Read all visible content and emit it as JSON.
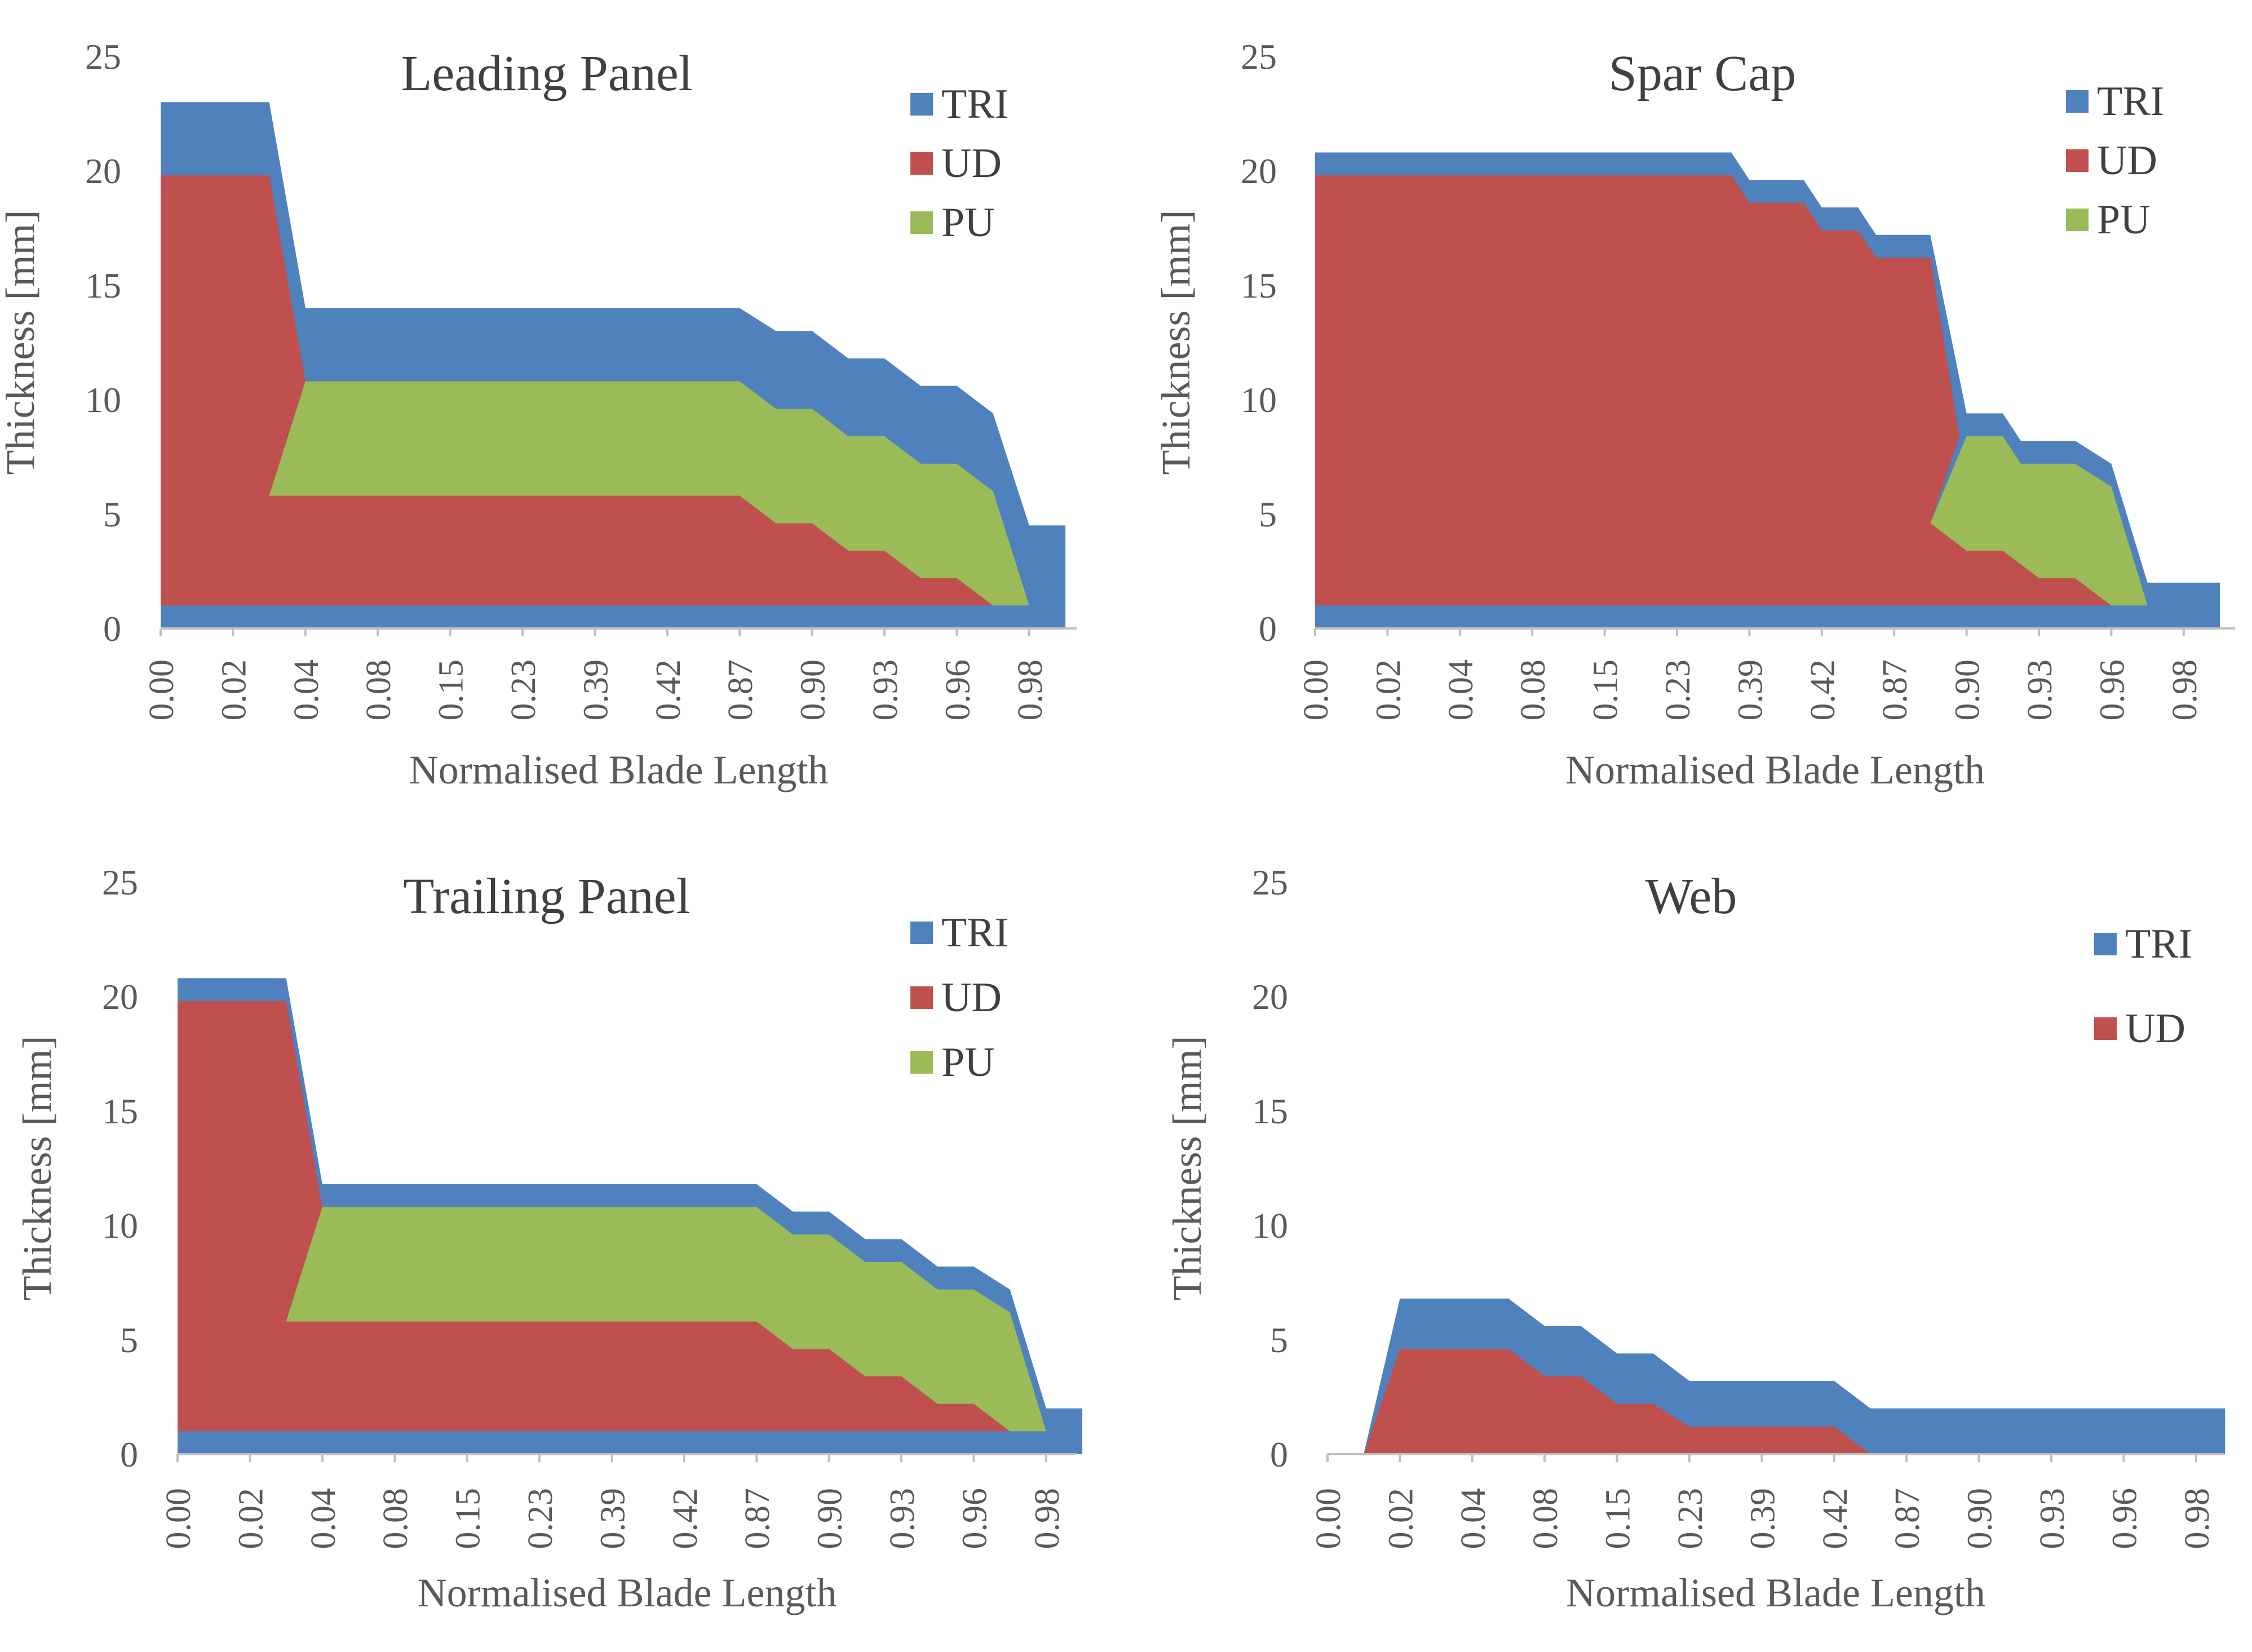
{
  "figure": {
    "charts": [
      "Leading Panel",
      "Spar Cap",
      "Trailing Panel",
      "Web"
    ]
  },
  "colors": {
    "TRI": "#4f81bd",
    "UD": "#c0504d",
    "PU": "#9bbb59",
    "axis": "#bfbfbf",
    "text": "#595959",
    "title": "#404040"
  },
  "chart_data": [
    {
      "type": "area",
      "stacking": "overlapped",
      "title": "Leading Panel",
      "xlabel": "Normalised Blade Length",
      "ylabel": "Thickness [mm]",
      "ylim": [
        0,
        25
      ],
      "yticks": [
        "0",
        "5",
        "10",
        "15",
        "20",
        "25"
      ],
      "categories": [
        "0.00",
        "0.02",
        "0.04",
        "0.08",
        "0.15",
        "0.23",
        "0.39",
        "0.42",
        "0.87",
        "0.90",
        "0.93",
        "0.96",
        "0.98"
      ],
      "legend": [
        "TRI",
        "UD",
        "PU"
      ],
      "series": [
        {
          "name": "TRI",
          "points": [
            [
              0,
              1.0
            ],
            [
              0,
              23.0
            ],
            [
              1.5,
              23.0
            ],
            [
              2.0,
              14.0
            ],
            [
              8.0,
              14.0
            ],
            [
              8.5,
              13.0
            ],
            [
              9.0,
              13.0
            ],
            [
              9.5,
              11.8
            ],
            [
              10.0,
              11.8
            ],
            [
              10.5,
              10.6
            ],
            [
              11.0,
              10.6
            ],
            [
              11.5,
              9.4
            ],
            [
              12.0,
              4.5
            ],
            [
              12.5,
              4.5
            ],
            [
              12.5,
              0
            ]
          ]
        },
        {
          "name": "UD",
          "points": [
            [
              0,
              1.0
            ],
            [
              0,
              19.8
            ],
            [
              1.5,
              19.8
            ],
            [
              2.0,
              10.8
            ],
            [
              1.5,
              5.8
            ],
            [
              8.0,
              5.8
            ],
            [
              8.5,
              4.6
            ],
            [
              9.0,
              4.6
            ],
            [
              9.5,
              3.4
            ],
            [
              10.0,
              3.4
            ],
            [
              10.5,
              2.2
            ],
            [
              11.0,
              2.2
            ],
            [
              11.5,
              1.0
            ]
          ]
        },
        {
          "name": "PU",
          "points": [
            [
              1.5,
              5.8
            ],
            [
              2.0,
              10.8
            ],
            [
              8.0,
              10.8
            ],
            [
              8.5,
              9.6
            ],
            [
              9.0,
              9.6
            ],
            [
              9.5,
              8.4
            ],
            [
              10.0,
              8.4
            ],
            [
              10.5,
              7.2
            ],
            [
              11.0,
              7.2
            ],
            [
              11.5,
              6.0
            ],
            [
              12.0,
              1.0
            ],
            [
              11.5,
              1.0
            ],
            [
              11.0,
              2.2
            ],
            [
              10.5,
              2.2
            ],
            [
              10.0,
              3.4
            ],
            [
              9.5,
              3.4
            ],
            [
              9.0,
              4.6
            ],
            [
              8.5,
              4.6
            ],
            [
              8.0,
              5.8
            ]
          ]
        },
        {
          "name": "TRI",
          "points": [
            [
              0,
              0
            ],
            [
              12.0,
              0
            ],
            [
              12.0,
              1.0
            ],
            [
              0,
              1.0
            ]
          ]
        }
      ]
    },
    {
      "type": "area",
      "stacking": "overlapped",
      "title": "Spar Cap",
      "xlabel": "Normalised Blade Length",
      "ylabel": "Thickness [mm]",
      "ylim": [
        0,
        25
      ],
      "yticks": [
        "0",
        "5",
        "10",
        "15",
        "20",
        "25"
      ],
      "categories": [
        "0.00",
        "0.02",
        "0.04",
        "0.08",
        "0.15",
        "0.23",
        "0.39",
        "0.42",
        "0.87",
        "0.90",
        "0.93",
        "0.96",
        "0.98"
      ],
      "legend": [
        "TRI",
        "UD",
        "PU"
      ],
      "series": [
        {
          "name": "TRI",
          "points": [
            [
              0,
              0
            ],
            [
              0,
              20.8
            ],
            [
              5.75,
              20.8
            ],
            [
              6.0,
              19.6
            ],
            [
              6.75,
              19.6
            ],
            [
              7.0,
              18.4
            ],
            [
              7.5,
              18.4
            ],
            [
              7.75,
              17.2
            ],
            [
              8.5,
              17.2
            ],
            [
              9.0,
              9.4
            ],
            [
              9.5,
              9.4
            ],
            [
              9.75,
              8.2
            ],
            [
              10.5,
              8.2
            ],
            [
              11.0,
              7.2
            ],
            [
              11.5,
              2.0
            ],
            [
              12.5,
              2.0
            ],
            [
              12.5,
              0
            ]
          ]
        },
        {
          "name": "UD",
          "points": [
            [
              0,
              1.0
            ],
            [
              0,
              19.8
            ],
            [
              5.75,
              19.8
            ],
            [
              6.0,
              18.6
            ],
            [
              6.75,
              18.6
            ],
            [
              7.0,
              17.4
            ],
            [
              7.5,
              17.4
            ],
            [
              7.75,
              16.2
            ],
            [
              8.5,
              16.2
            ],
            [
              8.9,
              8.4
            ],
            [
              8.5,
              4.6
            ],
            [
              9.0,
              3.4
            ],
            [
              9.5,
              3.4
            ],
            [
              10.0,
              2.2
            ],
            [
              10.5,
              2.2
            ],
            [
              11.0,
              1.0
            ]
          ]
        },
        {
          "name": "PU",
          "points": [
            [
              8.5,
              4.6
            ],
            [
              9.0,
              8.4
            ],
            [
              9.5,
              8.4
            ],
            [
              9.75,
              7.2
            ],
            [
              10.5,
              7.2
            ],
            [
              11.0,
              6.2
            ],
            [
              11.5,
              1.0
            ],
            [
              11.0,
              1.0
            ],
            [
              10.5,
              2.2
            ],
            [
              10.0,
              2.2
            ],
            [
              9.5,
              3.4
            ],
            [
              9.0,
              3.4
            ]
          ]
        },
        {
          "name": "TRI",
          "points": [
            [
              0,
              0
            ],
            [
              12.0,
              0
            ],
            [
              12.0,
              1.0
            ],
            [
              0,
              1.0
            ]
          ]
        }
      ]
    },
    {
      "type": "area",
      "stacking": "overlapped",
      "title": "Trailing Panel",
      "xlabel": "Normalised Blade Length",
      "ylabel": "Thickness [mm]",
      "ylim": [
        0,
        25
      ],
      "yticks": [
        "0",
        "5",
        "10",
        "15",
        "20",
        "25"
      ],
      "categories": [
        "0.00",
        "0.02",
        "0.04",
        "0.08",
        "0.15",
        "0.23",
        "0.39",
        "0.42",
        "0.87",
        "0.90",
        "0.93",
        "0.96",
        "0.98"
      ],
      "legend": [
        "TRI",
        "UD",
        "PU"
      ],
      "series": [
        {
          "name": "TRI",
          "points": [
            [
              0,
              1.0
            ],
            [
              0,
              20.8
            ],
            [
              1.5,
              20.8
            ],
            [
              2.0,
              11.8
            ],
            [
              8.0,
              11.8
            ],
            [
              8.5,
              10.6
            ],
            [
              9.0,
              10.6
            ],
            [
              9.5,
              9.4
            ],
            [
              10.0,
              9.4
            ],
            [
              10.5,
              8.2
            ],
            [
              11.0,
              8.2
            ],
            [
              11.5,
              7.2
            ],
            [
              12.0,
              2.0
            ],
            [
              12.5,
              2.0
            ],
            [
              12.5,
              0
            ]
          ]
        },
        {
          "name": "UD",
          "points": [
            [
              0,
              1.0
            ],
            [
              0,
              19.8
            ],
            [
              1.5,
              19.8
            ],
            [
              2.0,
              10.8
            ],
            [
              1.5,
              5.8
            ],
            [
              8.0,
              5.8
            ],
            [
              8.5,
              4.6
            ],
            [
              9.0,
              4.6
            ],
            [
              9.5,
              3.4
            ],
            [
              10.0,
              3.4
            ],
            [
              10.5,
              2.2
            ],
            [
              11.0,
              2.2
            ],
            [
              11.5,
              1.0
            ]
          ]
        },
        {
          "name": "PU",
          "points": [
            [
              1.5,
              5.8
            ],
            [
              2.0,
              10.8
            ],
            [
              8.0,
              10.8
            ],
            [
              8.5,
              9.6
            ],
            [
              9.0,
              9.6
            ],
            [
              9.5,
              8.4
            ],
            [
              10.0,
              8.4
            ],
            [
              10.5,
              7.2
            ],
            [
              11.0,
              7.2
            ],
            [
              11.5,
              6.2
            ],
            [
              12.0,
              1.0
            ],
            [
              11.5,
              1.0
            ],
            [
              11.0,
              2.2
            ],
            [
              10.5,
              2.2
            ],
            [
              10.0,
              3.4
            ],
            [
              9.5,
              3.4
            ],
            [
              9.0,
              4.6
            ],
            [
              8.5,
              4.6
            ],
            [
              8.0,
              5.8
            ]
          ]
        },
        {
          "name": "TRI",
          "points": [
            [
              0,
              0
            ],
            [
              12.0,
              0
            ],
            [
              12.0,
              1.0
            ],
            [
              0,
              1.0
            ]
          ]
        }
      ]
    },
    {
      "type": "area",
      "stacking": "overlapped",
      "title": "Web",
      "xlabel": "Normalised Blade Length",
      "ylabel": "Thickness [mm]",
      "ylim": [
        0,
        25
      ],
      "yticks": [
        "0",
        "5",
        "10",
        "15",
        "20",
        "25"
      ],
      "categories": [
        "0.00",
        "0.02",
        "0.04",
        "0.08",
        "0.15",
        "0.23",
        "0.39",
        "0.42",
        "0.87",
        "0.90",
        "0.93",
        "0.96",
        "0.98"
      ],
      "legend": [
        "TRI",
        "UD"
      ],
      "series": [
        {
          "name": "TRI",
          "points": [
            [
              0.5,
              0
            ],
            [
              1.0,
              6.8
            ],
            [
              2.5,
              6.8
            ],
            [
              3.0,
              5.6
            ],
            [
              3.5,
              5.6
            ],
            [
              4.0,
              4.4
            ],
            [
              4.5,
              4.4
            ],
            [
              5.0,
              3.2
            ],
            [
              7.0,
              3.2
            ],
            [
              7.5,
              2.0
            ],
            [
              12.4,
              2.0
            ],
            [
              12.4,
              0
            ]
          ]
        },
        {
          "name": "UD",
          "points": [
            [
              0.5,
              0
            ],
            [
              1.0,
              4.6
            ],
            [
              2.5,
              4.6
            ],
            [
              3.0,
              3.4
            ],
            [
              3.5,
              3.4
            ],
            [
              4.0,
              2.2
            ],
            [
              4.5,
              2.2
            ],
            [
              5.0,
              1.2
            ],
            [
              7.0,
              1.2
            ],
            [
              7.5,
              0
            ]
          ]
        }
      ]
    }
  ]
}
